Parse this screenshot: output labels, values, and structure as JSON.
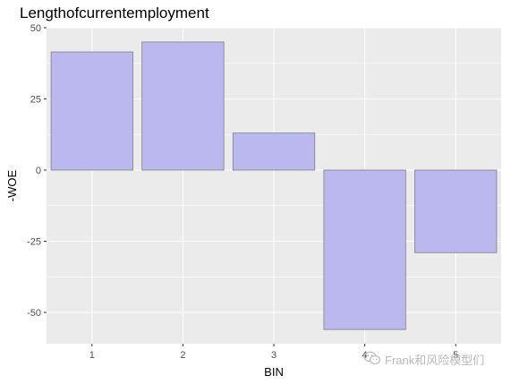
{
  "chart_data": {
    "type": "bar",
    "title": "Lengthofcurrentemployment",
    "xlabel": "BIN",
    "ylabel": "-WOE",
    "categories": [
      "1",
      "2",
      "3",
      "4",
      "5"
    ],
    "x_tick_labels": [
      "1",
      "2",
      "3",
      "4",
      "5"
    ],
    "values": [
      41.5,
      45,
      13,
      -56,
      -29
    ],
    "ylim": [
      -61,
      50
    ],
    "y_ticks": [
      50,
      25,
      0,
      -25,
      -50
    ],
    "grid": true,
    "colors": {
      "bar_fill": "#bbb8f0",
      "bar_stroke": "#7f7f7f",
      "panel_bg": "#ebebeb",
      "grid_major": "#ffffff"
    }
  },
  "watermark": {
    "text": "Frank和风险模型们",
    "icon": "wechat-icon"
  }
}
